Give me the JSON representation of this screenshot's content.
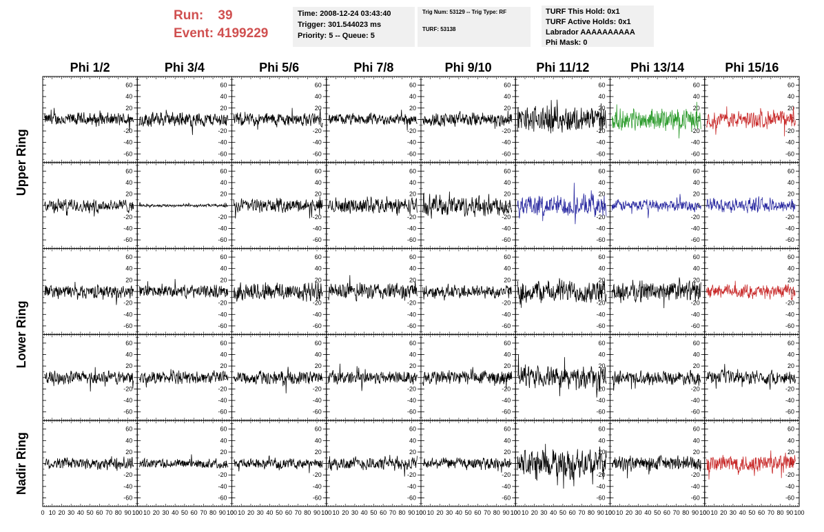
{
  "header": {
    "run_label": "Run:",
    "run_value": "39",
    "event_label": "Event:",
    "event_value": "4199229",
    "time": "Time: 2008-12-24 03:43:40",
    "trigger": "Trigger: 301.544023 ms",
    "priority": "Priority: 5 -- Queue: 5",
    "trig_num": "Trig Num: 53129 -- Trig Type: RF",
    "turf": "TURF: 53138",
    "turf_this_hold": "TURF This Hold: 0x1",
    "turf_active_holds": "TURF Active Holds: 0x1",
    "labrador": "Labrador AAAAAAAAAA",
    "phi_mask": "Phi Mask: 0"
  },
  "chart_data": {
    "type": "line",
    "columns": [
      "Phi 1/2",
      "Phi 3/4",
      "Phi 5/6",
      "Phi 7/8",
      "Phi 9/10",
      "Phi 11/12",
      "Phi 13/14",
      "Phi 15/16"
    ],
    "rows": [
      "Upper Ring",
      "Upper Ring",
      "Lower Ring",
      "Lower Ring",
      "Nadir Ring"
    ],
    "row_labels": [
      "Upper Ring",
      "Lower Ring",
      "Nadir Ring"
    ],
    "ylim": [
      -75,
      75
    ],
    "xlim": [
      0,
      100
    ],
    "y_ticks": [
      "60",
      "40",
      "20",
      "0",
      "-20",
      "-40",
      "-60"
    ],
    "x_ticks": [
      "0",
      "10",
      "20",
      "30",
      "40",
      "50",
      "60",
      "70",
      "80",
      "90",
      "100"
    ],
    "grid": false,
    "colors": {
      "normal": "#000000",
      "green": "#2a9a2a",
      "red": "#c82828",
      "blue": "#2828a0"
    },
    "trace_amplitude": [
      [
        14,
        15,
        14,
        12,
        15,
        28,
        22,
        18
      ],
      [
        14,
        3,
        14,
        16,
        22,
        22,
        12,
        14
      ],
      [
        14,
        13,
        20,
        18,
        14,
        24,
        22,
        14
      ],
      [
        14,
        13,
        14,
        14,
        16,
        22,
        14,
        14
      ],
      [
        13,
        10,
        10,
        14,
        12,
        30,
        16,
        20
      ]
    ],
    "trace_color": [
      [
        "normal",
        "normal",
        "normal",
        "normal",
        "normal",
        "normal",
        "green",
        "red"
      ],
      [
        "normal",
        "normal",
        "normal",
        "normal",
        "normal",
        "blue",
        "blue",
        "blue"
      ],
      [
        "normal",
        "normal",
        "normal",
        "normal",
        "normal",
        "normal",
        "normal",
        "red"
      ],
      [
        "normal",
        "normal",
        "normal",
        "normal",
        "normal",
        "normal",
        "normal",
        "normal"
      ],
      [
        "normal",
        "normal",
        "normal",
        "normal",
        "normal",
        "normal",
        "normal",
        "red"
      ]
    ]
  }
}
